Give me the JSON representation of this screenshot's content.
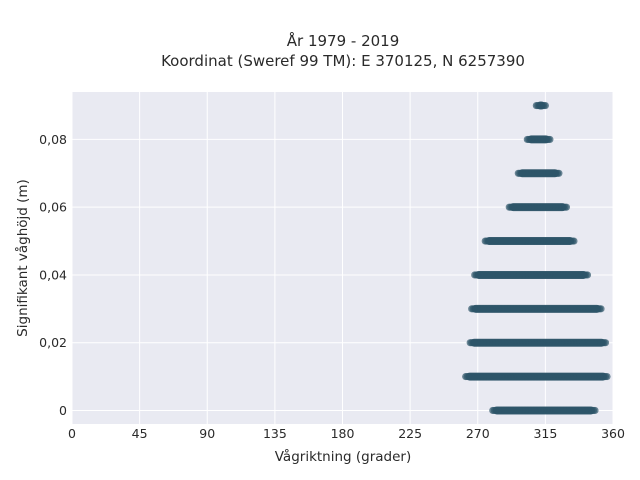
{
  "chart_data": {
    "type": "scatter",
    "title_line1": "År 1979 - 2019",
    "title_line2": "Koordinat (Sweref 99 TM): E 370125, N 6257390",
    "xlabel": "Vågriktning (grader)",
    "ylabel": "Signifikant våghöjd (m)",
    "xlim": [
      0,
      360
    ],
    "ylim": [
      -0.004,
      0.094
    ],
    "x_ticks": [
      0,
      45,
      90,
      135,
      180,
      225,
      270,
      315,
      360
    ],
    "x_tick_labels": [
      "0",
      "45",
      "90",
      "135",
      "180",
      "225",
      "270",
      "315",
      "360"
    ],
    "y_ticks": [
      0,
      0.02,
      0.04,
      0.06,
      0.08
    ],
    "y_tick_labels": [
      "0",
      "0,02",
      "0,04",
      "0,06",
      "0,08"
    ],
    "grid": true,
    "marker_color": "#2e5569",
    "plot_background": "#e9eaf2",
    "bands": [
      {
        "y": 0.0,
        "x_min": 280,
        "x_max": 348
      },
      {
        "y": 0.01,
        "x_min": 262,
        "x_max": 356
      },
      {
        "y": 0.02,
        "x_min": 265,
        "x_max": 355
      },
      {
        "y": 0.03,
        "x_min": 266,
        "x_max": 352
      },
      {
        "y": 0.04,
        "x_min": 268,
        "x_max": 343
      },
      {
        "y": 0.05,
        "x_min": 275,
        "x_max": 334
      },
      {
        "y": 0.06,
        "x_min": 291,
        "x_max": 329
      },
      {
        "y": 0.07,
        "x_min": 297,
        "x_max": 324
      },
      {
        "y": 0.08,
        "x_min": 303,
        "x_max": 318
      },
      {
        "y": 0.09,
        "x_min": 309,
        "x_max": 315
      }
    ]
  }
}
